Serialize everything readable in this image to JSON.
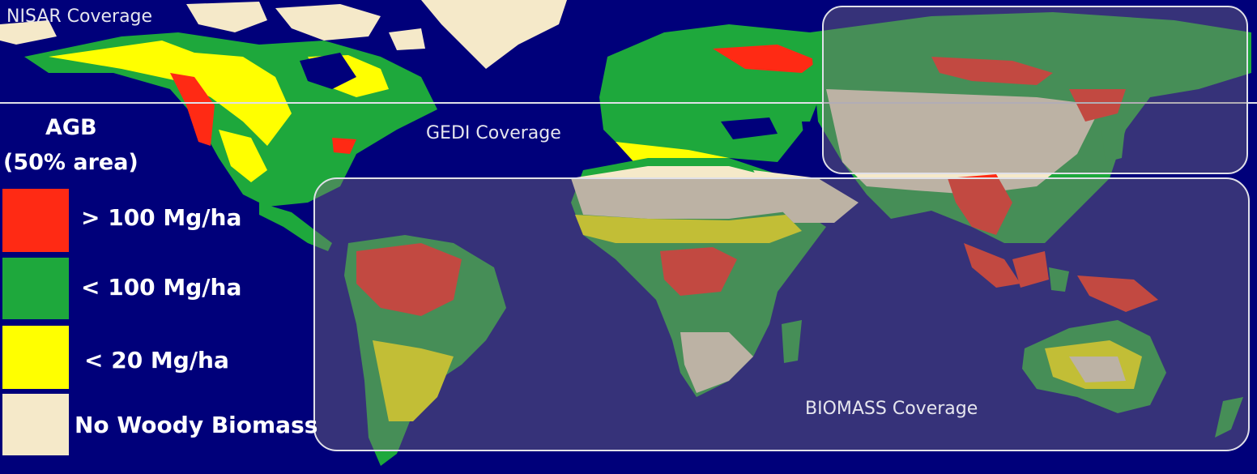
{
  "colors": {
    "ocean": "#00007a",
    "high": "#ff2a14",
    "mid": "#1ea83c",
    "low": "#ffff00",
    "none": "#f5e9c9",
    "coverage_overlay": "rgba(120,110,120,0.45)",
    "coverage_border": "#e0e0e8"
  },
  "coverage": {
    "nisar": "NISAR Coverage",
    "gedi": "GEDI Coverage",
    "biomass": "BIOMASS Coverage"
  },
  "legend": {
    "title_line1": "AGB",
    "title_line2": "(50% area)",
    "items": [
      {
        "label": "> 100 Mg/ha",
        "color": "#ff2a14"
      },
      {
        "label": "< 100 Mg/ha",
        "color": "#1ea83c"
      },
      {
        "label": "< 20 Mg/ha",
        "color": "#ffff00"
      },
      {
        "label": "No Woody Biomass",
        "color": "#f5e9c9"
      }
    ]
  }
}
